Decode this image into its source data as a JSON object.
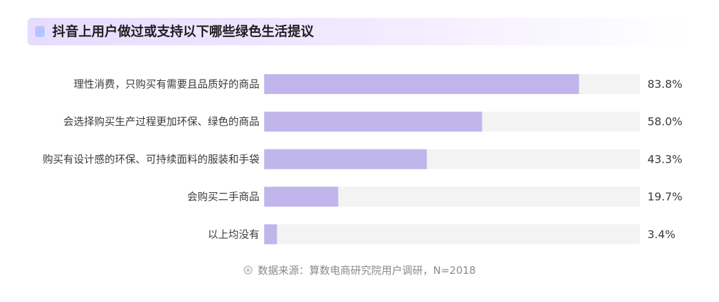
{
  "chart_data": {
    "type": "bar",
    "orientation": "horizontal",
    "title": "抖音上用户做过或支持以下哪些绿色生活提议",
    "categories": [
      "理性消费，只购买有需要且品质好的商品",
      "会选择购买生产过程更加环保、绿色的商品",
      "购买有设计感的环保、可持续面料的服装和手袋",
      "会购买二手商品",
      "以上均没有"
    ],
    "values": [
      83.8,
      58.0,
      43.3,
      19.7,
      3.4
    ],
    "value_labels": [
      "83.8%",
      "58.0%",
      "43.3%",
      "19.7%",
      "3.4%"
    ],
    "xlim": [
      0,
      100
    ],
    "unit": "%",
    "bar_color": "#c1b6eb",
    "track_color": "#f3f3f3",
    "grid": false,
    "legend": "none"
  },
  "source": "数据来源：算数电商研究院用户调研，N=2018"
}
